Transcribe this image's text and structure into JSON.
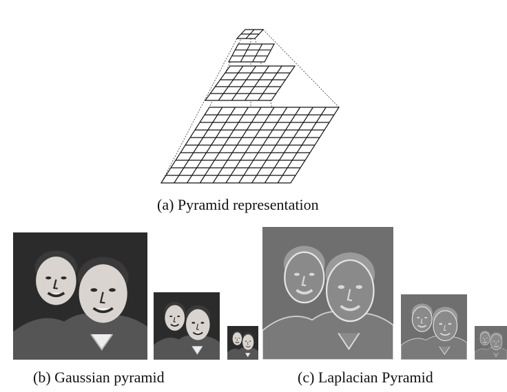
{
  "figure": {
    "captions": {
      "a": "(a) Pyramid representation",
      "b": "(b) Gaussian pyramid",
      "c": "(c) Laplacian Pyramid"
    },
    "pyramid_levels": [
      {
        "grid": 2
      },
      {
        "grid": 3
      },
      {
        "grid": 5
      },
      {
        "grid": 10
      }
    ],
    "colors": {
      "gaussian_bg": "#2b2b2b",
      "laplacian_bg": "#6f6f6f",
      "grid_line": "#111111"
    }
  }
}
